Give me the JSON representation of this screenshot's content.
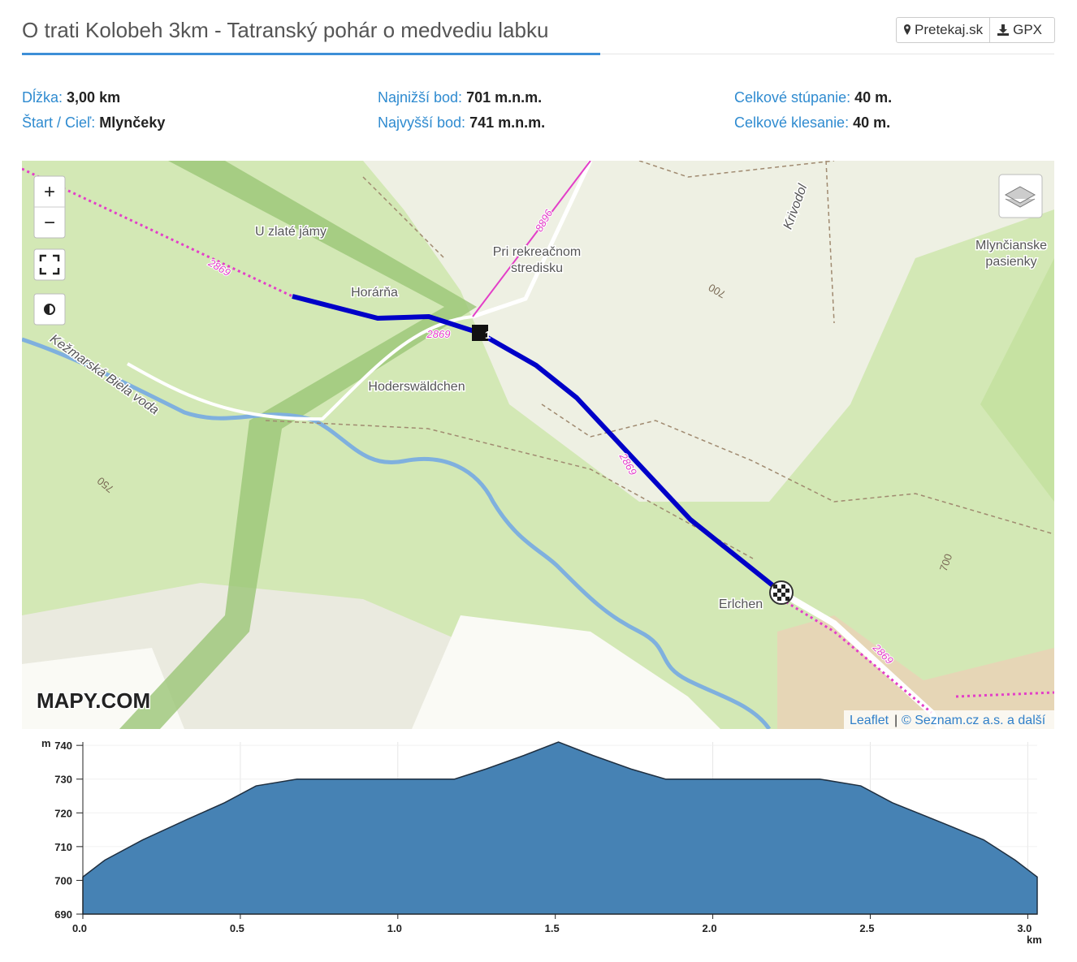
{
  "header": {
    "title": "O trati Kolobeh 3km - Tatranský pohár o medvediu labku",
    "buttons": [
      "Pretekaj.sk",
      "GPX"
    ]
  },
  "stats": [
    [
      {
        "label": "Dĺžka:",
        "value": "3,00 km"
      },
      {
        "label": "Štart / Cieľ:",
        "value": "Mlynčeky"
      }
    ],
    [
      {
        "label": "Najnižší bod:",
        "value": "701 m.n.m."
      },
      {
        "label": "Najvyšší bod:",
        "value": "741 m.n.m."
      }
    ],
    [
      {
        "label": "Celkové stúpanie:",
        "value": "40 m."
      },
      {
        "label": "Celkové klesanie:",
        "value": "40 m."
      }
    ]
  ],
  "map": {
    "zoom": [
      "+",
      "−"
    ],
    "marker": "1",
    "labels": [
      "U zlaté jámy",
      "Horárňa",
      "Pri rekreačnom",
      "stredisku",
      "Hoderswäldchen",
      "Erlchen",
      "Mlynčianske",
      "pasienky",
      "Kežmarská Biela voda",
      "Krivodol",
      "2869",
      "2869",
      "2869",
      "2869",
      "8896",
      "700",
      "750",
      "700"
    ],
    "logo": "MAPY.COM",
    "attribution": [
      "Leaflet",
      "|",
      "© Seznam.cz a.s. a další"
    ]
  },
  "chart_data": {
    "type": "area",
    "color": "#4682b4",
    "x": [
      0,
      0.07,
      0.19,
      0.33,
      0.45,
      0.55,
      0.68,
      1.18,
      1.28,
      1.4,
      1.51,
      1.62,
      1.74,
      1.85,
      2.34,
      2.47,
      2.57,
      2.73,
      2.86,
      2.96,
      3.03
    ],
    "values": [
      701,
      706,
      712,
      718,
      723,
      728,
      730,
      730,
      733,
      737,
      741,
      737,
      733,
      730,
      730,
      728,
      723,
      717,
      712,
      706,
      701
    ],
    "xlim": [
      0,
      3.03
    ],
    "ylim": [
      690,
      741
    ],
    "xticks": [
      {
        "value": 0,
        "label": "0.0"
      },
      0.5,
      {
        "value": 1,
        "label": "1.0"
      },
      1.5,
      {
        "value": 2,
        "label": "2.0"
      },
      2.5,
      {
        "value": 3,
        "label": "3.0"
      }
    ],
    "yticks": [
      690,
      700,
      710,
      720,
      730,
      740
    ],
    "x_unit": "km",
    "y_unit": "m",
    "grid": true
  }
}
